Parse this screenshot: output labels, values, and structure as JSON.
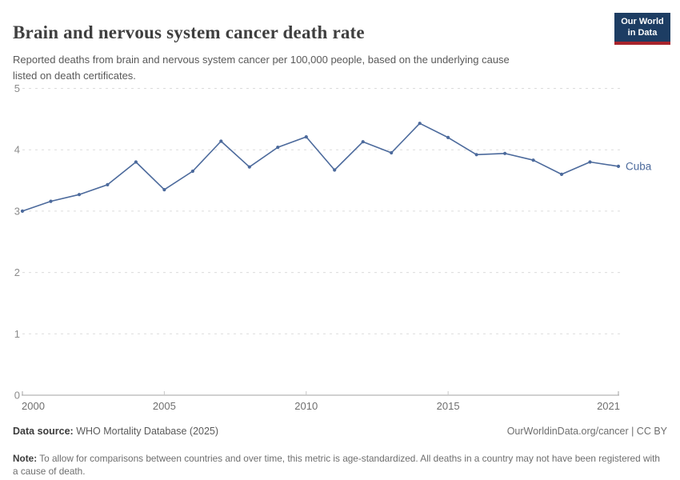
{
  "header": {
    "title": "Brain and nervous system cancer death rate",
    "subtitle_lines": [
      "Reported deaths from brain and nervous system cancer per 100,000 people, based on the underlying cause",
      "listed on death certificates."
    ]
  },
  "logo": {
    "line1": "Our World",
    "line2": "in Data",
    "bg_color": "#1d3d63",
    "accent_color": "#a8242c"
  },
  "chart_data": {
    "type": "line",
    "title": "Brain and nervous system cancer death rate",
    "x": [
      2000,
      2001,
      2002,
      2003,
      2004,
      2005,
      2006,
      2007,
      2008,
      2009,
      2010,
      2011,
      2012,
      2013,
      2014,
      2015,
      2016,
      2017,
      2018,
      2019,
      2020,
      2021
    ],
    "series": [
      {
        "name": "Cuba",
        "color": "#4c6a9c",
        "values": [
          3.0,
          3.16,
          3.27,
          3.43,
          3.8,
          3.35,
          3.65,
          4.14,
          3.72,
          4.04,
          4.21,
          3.67,
          4.13,
          3.95,
          4.43,
          4.2,
          3.92,
          3.94,
          3.83,
          3.6,
          3.8,
          3.73
        ]
      }
    ],
    "ylim": [
      0,
      5
    ],
    "yticks": [
      0,
      1,
      2,
      3,
      4,
      5
    ],
    "xticks": [
      2000,
      2005,
      2010,
      2015,
      2021
    ],
    "xlabel": "",
    "ylabel": "",
    "grid": "horizontal-dashed",
    "legend_position": "end-of-line-label"
  },
  "footer": {
    "source_label": "Data source:",
    "source_text": " WHO Mortality Database (2025)",
    "link": "OurWorldinData.org/cancer | CC BY",
    "note_label": "Note:",
    "note_text": " To allow for comparisons between countries and over time, this metric is age-standardized. All deaths in a country may not have been registered with a cause of death."
  }
}
